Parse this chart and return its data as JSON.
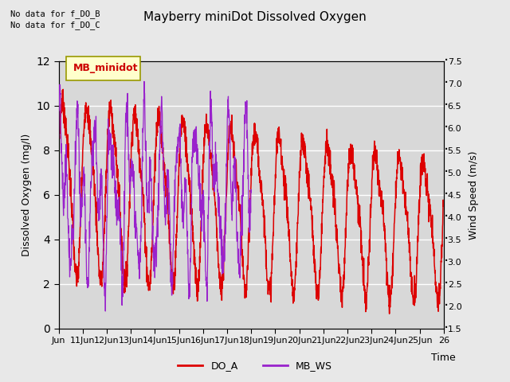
{
  "title": "Mayberry miniDot Dissolved Oxygen",
  "xlabel": "Time",
  "ylabel_left": "Dissolved Oxygen (mg/l)",
  "ylabel_right": "Wind Speed (m/s)",
  "top_text_line1": "No data for f_DO_B",
  "top_text_line2": "No data for f_DO_C",
  "legend_label_box": "MB_minidot",
  "legend_entries": [
    "DO_A",
    "MB_WS"
  ],
  "do_color": "#dd0000",
  "ws_color": "#9922cc",
  "ylim_left": [
    0,
    12
  ],
  "ylim_right": [
    1.5,
    7.5
  ],
  "yticks_left": [
    0,
    2,
    4,
    6,
    8,
    10,
    12
  ],
  "yticks_right": [
    1.5,
    2.0,
    2.5,
    3.0,
    3.5,
    4.0,
    4.5,
    5.0,
    5.5,
    6.0,
    6.5,
    7.0,
    7.5
  ],
  "x_start": 10,
  "x_end": 26,
  "x_ticks": [
    10,
    11,
    12,
    13,
    14,
    15,
    16,
    17,
    18,
    19,
    20,
    21,
    22,
    23,
    24,
    25,
    26
  ],
  "x_labels": [
    "Jun",
    "11Jun",
    "12Jun",
    "13Jun",
    "14Jun",
    "15Jun",
    "16Jun",
    "17Jun",
    "18Jun",
    "19Jun",
    "20Jun",
    "21Jun",
    "22Jun",
    "23Jun",
    "24Jun",
    "25Jun",
    "26"
  ],
  "bg_color": "#e8e8e8",
  "plot_bg_color": "#d8d8d8",
  "do_lw": 1.1,
  "ws_lw": 0.9,
  "figsize": [
    6.4,
    4.8
  ],
  "dpi": 100
}
